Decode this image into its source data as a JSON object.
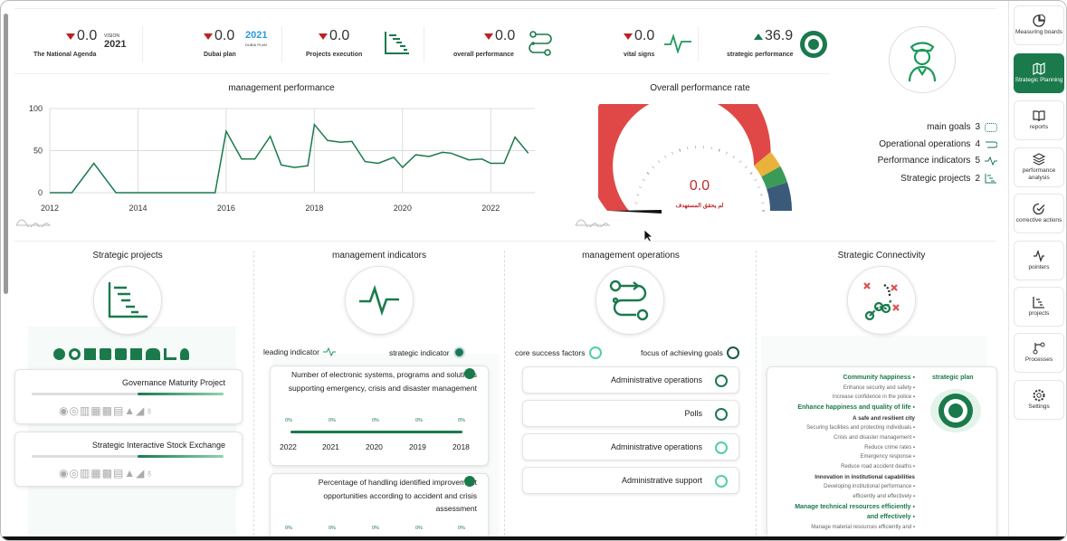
{
  "kpis": [
    {
      "value": "0.0",
      "label": "The National Agenda",
      "trend": "down",
      "logo": "Vision 2021"
    },
    {
      "value": "0.0",
      "label": "Dubai plan",
      "trend": "down",
      "logo": "Dubai Plan 2021"
    },
    {
      "value": "0.0",
      "label": "Projects execution",
      "trend": "down",
      "icon": "gantt-icon"
    },
    {
      "value": "0.0",
      "label": "overall performance",
      "trend": "down",
      "icon": "flow-icon"
    },
    {
      "value": "0.0",
      "label": "vital signs",
      "trend": "down",
      "icon": "pulse-icon"
    },
    {
      "value": "36.9",
      "label": "strategic performance",
      "trend": "up",
      "icon": "seal-icon"
    }
  ],
  "summary": {
    "main_goals": {
      "label": "main goals",
      "count": "3"
    },
    "operational_operations": {
      "label": "Operational operations",
      "count": "4"
    },
    "performance_indicators": {
      "label": "Performance indicators",
      "count": "5"
    },
    "strategic_projects": {
      "label": "Strategic projects",
      "count": "2"
    }
  },
  "management_performance": {
    "title": "management performance",
    "chart_data": {
      "type": "line",
      "title": "management performance",
      "x": [
        2012,
        2012.5,
        2013,
        2013.5,
        2014,
        2014.5,
        2015,
        2015.5,
        2015.75,
        2016,
        2016.35,
        2016.65,
        2017,
        2017.25,
        2017.55,
        2017.85,
        2018,
        2018.3,
        2018.6,
        2018.85,
        2019.15,
        2019.45,
        2019.8,
        2020,
        2020.3,
        2020.6,
        2020.9,
        2021.1,
        2021.5,
        2021.8,
        2022,
        2022.3,
        2022.55,
        2022.85
      ],
      "y": [
        0,
        0,
        35,
        0,
        0,
        0,
        0,
        0,
        0,
        73,
        40,
        40,
        67,
        33,
        30,
        32,
        81,
        62,
        60,
        61,
        37,
        35,
        42,
        30,
        45,
        43,
        48,
        47,
        39,
        40,
        35,
        35,
        66,
        47
      ],
      "ylim": [
        0,
        100
      ],
      "yticks": [
        "100",
        "50",
        "0"
      ],
      "xticks": [
        "2012",
        "2014",
        "2016",
        "2018",
        "2020",
        "2022"
      ],
      "color": "#1a7a4c"
    }
  },
  "overall_rate": {
    "title": "Overall performance rate",
    "value": "0.0",
    "subtitle": "لم يحقق المستهدف",
    "chart_data": {
      "type": "gauge",
      "value": 0.0,
      "range": [
        0,
        100
      ],
      "bands": [
        {
          "to": 78,
          "color": "#e04848"
        },
        {
          "to": 84,
          "color": "#e9b23a"
        },
        {
          "to": 90,
          "color": "#3a9a57"
        },
        {
          "to": 100,
          "color": "#3b5a7a"
        }
      ]
    }
  },
  "sections": {
    "strategic_projects": {
      "title": "Strategic projects",
      "items": [
        {
          "name": "Governance Maturity Project",
          "progress": 0.45
        },
        {
          "name": "Strategic Interactive Stock Exchange",
          "progress": 0.45
        }
      ]
    },
    "management_indicators": {
      "title": "management indicators",
      "leading": "leading indicator",
      "strategic": "strategic indicator",
      "cards": [
        {
          "text": "Number of electronic systems, programs and solutions supporting emergency, crisis and disaster management",
          "years": [
            "2022",
            "2021",
            "2020",
            "2019",
            "2018"
          ],
          "pcts": [
            "0%",
            "0%",
            "0%",
            "0%",
            "0%"
          ]
        },
        {
          "text": "Percentage of handling identified improvement opportunities according to accident and crisis assessment",
          "pcts": [
            "0%",
            "0%",
            "0%",
            "0%",
            "0%"
          ]
        }
      ]
    },
    "management_operations": {
      "title": "management operations",
      "legend_core": "core success factors",
      "legend_focus": "focus of achieving goals",
      "items": [
        {
          "label": "Administrative operations",
          "ring": "dark"
        },
        {
          "label": "Polls",
          "ring": "dark"
        },
        {
          "label": "Administrative operations",
          "ring": "light"
        },
        {
          "label": "Administrative support",
          "ring": "light"
        }
      ]
    },
    "strategic_connectivity": {
      "title": "Strategic Connectivity",
      "plan_label": "strategic plan",
      "lines": [
        {
          "t": "Community happiness",
          "s": "b"
        },
        {
          "t": "Enhance security and safety",
          "s": "n"
        },
        {
          "t": "Increase confidence in the police",
          "s": "n"
        },
        {
          "t": "Enhance happiness and quality of life",
          "s": "b"
        },
        {
          "t": "A safe and resilient city",
          "s": "k"
        },
        {
          "t": "Securing facilities and protecting individuals",
          "s": "n"
        },
        {
          "t": "Crisis and disaster management",
          "s": "n"
        },
        {
          "t": "Reduce crime rates",
          "s": "n"
        },
        {
          "t": "Emergency response",
          "s": "n"
        },
        {
          "t": "Reduce road accident deaths",
          "s": "n"
        },
        {
          "t": "Innovation in institutional capabilities",
          "s": "k"
        },
        {
          "t": "Developing institutional performance",
          "s": "n"
        },
        {
          "t": "efficiently and effectively",
          "s": "n"
        },
        {
          "t": "Manage technical resources efficiently",
          "s": "b"
        },
        {
          "t": "and effectively",
          "s": "b"
        },
        {
          "t": "Manage material resources efficiently and",
          "s": "n"
        }
      ]
    }
  },
  "sidebar": [
    {
      "label": "Measuring boards",
      "icon": "pie-chart-icon"
    },
    {
      "label": "Strategic Planning",
      "icon": "map-icon",
      "active": true
    },
    {
      "label": "reports",
      "icon": "book-icon"
    },
    {
      "label": "performance analysis",
      "icon": "layers-icon"
    },
    {
      "label": "corrective actions",
      "icon": "check-circle-icon"
    },
    {
      "label": "pointers",
      "icon": "activity-icon"
    },
    {
      "label": "projects",
      "icon": "bar-chart-icon"
    },
    {
      "label": "Processes",
      "icon": "git-branch-icon"
    },
    {
      "label": "Settings",
      "icon": "gear-icon"
    }
  ]
}
